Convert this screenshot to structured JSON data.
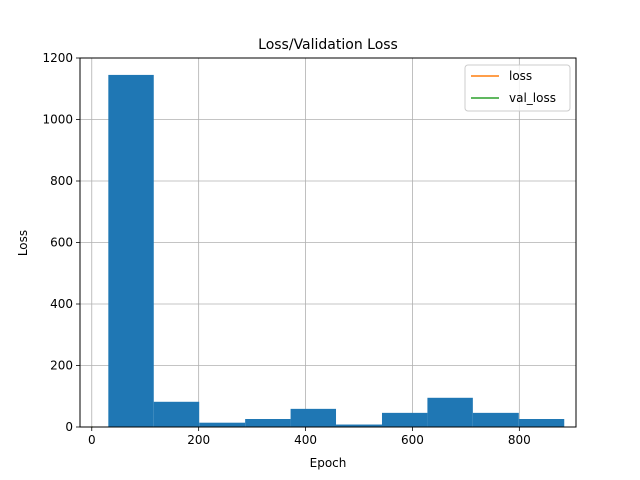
{
  "chart_data": {
    "type": "bar",
    "title": "Loss/Validation Loss",
    "xlabel": "Epoch",
    "ylabel": "Loss",
    "xlim": [
      -22,
      906
    ],
    "ylim": [
      0,
      1200
    ],
    "xticks": [
      0,
      200,
      400,
      600,
      800
    ],
    "yticks": [
      0,
      200,
      400,
      600,
      800,
      1000,
      1200
    ],
    "grid": true,
    "legend_position": "upper right",
    "histogram_bins": [
      {
        "x0": 31,
        "x1": 116,
        "value": 1145
      },
      {
        "x0": 116,
        "x1": 201,
        "value": 82
      },
      {
        "x0": 201,
        "x1": 287,
        "value": 14
      },
      {
        "x0": 287,
        "x1": 372,
        "value": 26
      },
      {
        "x0": 372,
        "x1": 457,
        "value": 59
      },
      {
        "x0": 457,
        "x1": 543,
        "value": 8
      },
      {
        "x0": 543,
        "x1": 628,
        "value": 46
      },
      {
        "x0": 628,
        "x1": 713,
        "value": 95
      },
      {
        "x0": 713,
        "x1": 799,
        "value": 46
      },
      {
        "x0": 799,
        "x1": 884,
        "value": 26
      }
    ],
    "series": [
      {
        "name": "loss",
        "color": "#ff7f0e",
        "x": [
          0,
          1
        ],
        "y": [
          0,
          0
        ]
      },
      {
        "name": "val_loss",
        "color": "#2ca02c",
        "x": [
          0,
          1
        ],
        "y": [
          0,
          0
        ]
      }
    ],
    "bar_color": "#1f77b4"
  }
}
